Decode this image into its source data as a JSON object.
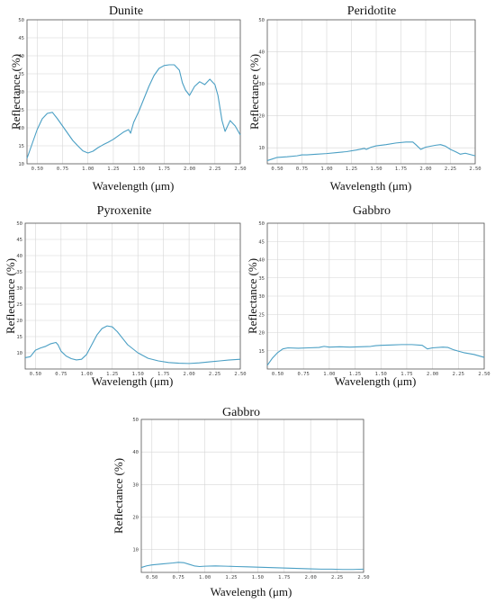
{
  "chart_data": [
    {
      "type": "line",
      "title": "Dunite",
      "xlabel": "Wavelength (μm)",
      "ylabel": "Reflectance (%)",
      "xlim": [
        0.4,
        2.5
      ],
      "ylim": [
        10,
        50
      ],
      "xticks": [
        "0.50",
        "0.75",
        "1.00",
        "1.25",
        "1.50",
        "1.75",
        "2.00",
        "2.25",
        "2.50"
      ],
      "yticks": [
        "10",
        "15",
        "20",
        "25",
        "30",
        "35",
        "40",
        "45",
        "50"
      ],
      "grid": true,
      "color": "#4a9fc4",
      "series": [
        {
          "x": [
            0.4,
            0.45,
            0.5,
            0.55,
            0.6,
            0.65,
            0.7,
            0.75,
            0.8,
            0.85,
            0.9,
            0.95,
            1.0,
            1.05,
            1.1,
            1.15,
            1.2,
            1.25,
            1.3,
            1.35,
            1.4,
            1.42,
            1.45,
            1.5,
            1.55,
            1.6,
            1.65,
            1.7,
            1.75,
            1.8,
            1.85,
            1.9,
            1.93,
            1.96,
            2.0,
            2.05,
            2.1,
            2.15,
            2.2,
            2.25,
            2.28,
            2.32,
            2.35,
            2.4,
            2.45,
            2.5
          ],
          "y": [
            11.5,
            15.5,
            19.5,
            22.5,
            24.0,
            24.3,
            22.5,
            20.5,
            18.5,
            16.5,
            15.0,
            13.6,
            13.0,
            13.5,
            14.5,
            15.3,
            16.0,
            16.8,
            17.8,
            18.8,
            19.5,
            18.5,
            21.5,
            24.5,
            28.0,
            31.5,
            34.5,
            36.5,
            37.3,
            37.5,
            37.5,
            36.0,
            32.5,
            30.5,
            29.0,
            31.5,
            32.8,
            32.0,
            33.5,
            32.0,
            29.0,
            22.0,
            19.0,
            22.0,
            20.5,
            18.0
          ]
        }
      ]
    },
    {
      "type": "line",
      "title": "Peridotite",
      "xlabel": "Wavelength (μm)",
      "ylabel": "Reflectance (%)",
      "xlim": [
        0.4,
        2.5
      ],
      "ylim": [
        5,
        50
      ],
      "xticks": [
        "0.50",
        "0.75",
        "1.00",
        "1.25",
        "1.50",
        "1.75",
        "2.00",
        "2.25",
        "2.50"
      ],
      "yticks": [
        "10",
        "20",
        "30",
        "40",
        "50"
      ],
      "grid": true,
      "color": "#4a9fc4",
      "series": [
        {
          "x": [
            0.4,
            0.45,
            0.5,
            0.6,
            0.7,
            0.75,
            0.8,
            0.9,
            1.0,
            1.1,
            1.2,
            1.3,
            1.38,
            1.4,
            1.45,
            1.5,
            1.6,
            1.7,
            1.8,
            1.87,
            1.9,
            1.95,
            2.0,
            2.1,
            2.15,
            2.2,
            2.25,
            2.3,
            2.35,
            2.4,
            2.5
          ],
          "y": [
            6.0,
            6.5,
            7.0,
            7.2,
            7.5,
            7.8,
            7.8,
            8.0,
            8.2,
            8.5,
            8.8,
            9.3,
            9.8,
            9.5,
            10.2,
            10.6,
            11.0,
            11.5,
            11.8,
            11.8,
            11.0,
            9.5,
            10.2,
            10.8,
            11.0,
            10.5,
            9.5,
            8.8,
            8.0,
            8.3,
            7.5
          ]
        }
      ]
    },
    {
      "type": "line",
      "title": "Pyroxenite",
      "xlabel": "Wavelength (μm)",
      "ylabel": "Reflectance (%)",
      "xlim": [
        0.4,
        2.5
      ],
      "ylim": [
        5,
        50
      ],
      "xticks": [
        "0.50",
        "0.75",
        "1.00",
        "1.25",
        "1.50",
        "1.75",
        "2.00",
        "2.25",
        "2.50"
      ],
      "yticks": [
        "10",
        "15",
        "20",
        "25",
        "30",
        "35",
        "40",
        "45",
        "50"
      ],
      "grid": true,
      "color": "#4a9fc4",
      "series": [
        {
          "x": [
            0.4,
            0.45,
            0.5,
            0.55,
            0.6,
            0.65,
            0.7,
            0.72,
            0.75,
            0.8,
            0.85,
            0.9,
            0.95,
            1.0,
            1.05,
            1.1,
            1.15,
            1.2,
            1.25,
            1.3,
            1.35,
            1.4,
            1.5,
            1.6,
            1.7,
            1.8,
            1.9,
            2.0,
            2.1,
            2.2,
            2.3,
            2.4,
            2.5
          ],
          "y": [
            8.5,
            8.8,
            10.8,
            11.5,
            12.0,
            12.8,
            13.2,
            12.5,
            10.5,
            9.0,
            8.2,
            7.8,
            8.0,
            9.5,
            12.5,
            15.5,
            17.5,
            18.3,
            18.0,
            16.5,
            14.5,
            12.5,
            10.0,
            8.3,
            7.5,
            7.0,
            6.8,
            6.7,
            6.9,
            7.2,
            7.5,
            7.8,
            8.0
          ]
        }
      ]
    },
    {
      "type": "line",
      "title": "Gabbro",
      "xlabel": "Wavelength (μm)",
      "ylabel": "Reflectance (%)",
      "xlim": [
        0.4,
        2.5
      ],
      "ylim": [
        10,
        50
      ],
      "xticks": [
        "0.50",
        "0.75",
        "1.00",
        "1.25",
        "1.50",
        "1.75",
        "2.00",
        "2.25",
        "2.50"
      ],
      "yticks": [
        "15",
        "20",
        "25",
        "30",
        "35",
        "40",
        "45",
        "50"
      ],
      "grid": true,
      "color": "#4a9fc4",
      "series": [
        {
          "x": [
            0.4,
            0.45,
            0.5,
            0.55,
            0.6,
            0.7,
            0.8,
            0.9,
            0.95,
            1.0,
            1.1,
            1.2,
            1.3,
            1.4,
            1.45,
            1.5,
            1.6,
            1.7,
            1.8,
            1.9,
            1.95,
            2.0,
            2.1,
            2.15,
            2.2,
            2.3,
            2.4,
            2.5
          ],
          "y": [
            11.0,
            13.0,
            14.5,
            15.5,
            15.8,
            15.7,
            15.8,
            15.9,
            16.2,
            16.0,
            16.1,
            16.0,
            16.1,
            16.2,
            16.4,
            16.5,
            16.6,
            16.7,
            16.7,
            16.5,
            15.5,
            15.8,
            16.0,
            15.9,
            15.3,
            14.5,
            14.0,
            13.2
          ]
        }
      ]
    },
    {
      "type": "line",
      "title": "Gabbro",
      "xlabel": "Wavelength (μm)",
      "ylabel": "Reflectance (%)",
      "xlim": [
        0.4,
        2.5
      ],
      "ylim": [
        3,
        50
      ],
      "xticks": [
        "0.50",
        "0.75",
        "1.00",
        "1.25",
        "1.50",
        "1.75",
        "2.00",
        "2.25",
        "2.50"
      ],
      "yticks": [
        "10",
        "20",
        "30",
        "40",
        "50"
      ],
      "grid": true,
      "color": "#4a9fc4",
      "series": [
        {
          "x": [
            0.4,
            0.45,
            0.5,
            0.6,
            0.7,
            0.75,
            0.8,
            0.85,
            0.9,
            0.95,
            1.0,
            1.1,
            1.2,
            1.3,
            1.4,
            1.5,
            1.6,
            1.7,
            1.8,
            1.9,
            2.0,
            2.1,
            2.2,
            2.3,
            2.4,
            2.5
          ],
          "y": [
            4.5,
            5.0,
            5.3,
            5.6,
            5.9,
            6.1,
            6.0,
            5.5,
            5.0,
            4.8,
            4.9,
            5.0,
            4.9,
            4.8,
            4.7,
            4.6,
            4.5,
            4.4,
            4.3,
            4.2,
            4.1,
            4.0,
            4.0,
            3.9,
            3.9,
            4.0
          ]
        }
      ]
    }
  ]
}
